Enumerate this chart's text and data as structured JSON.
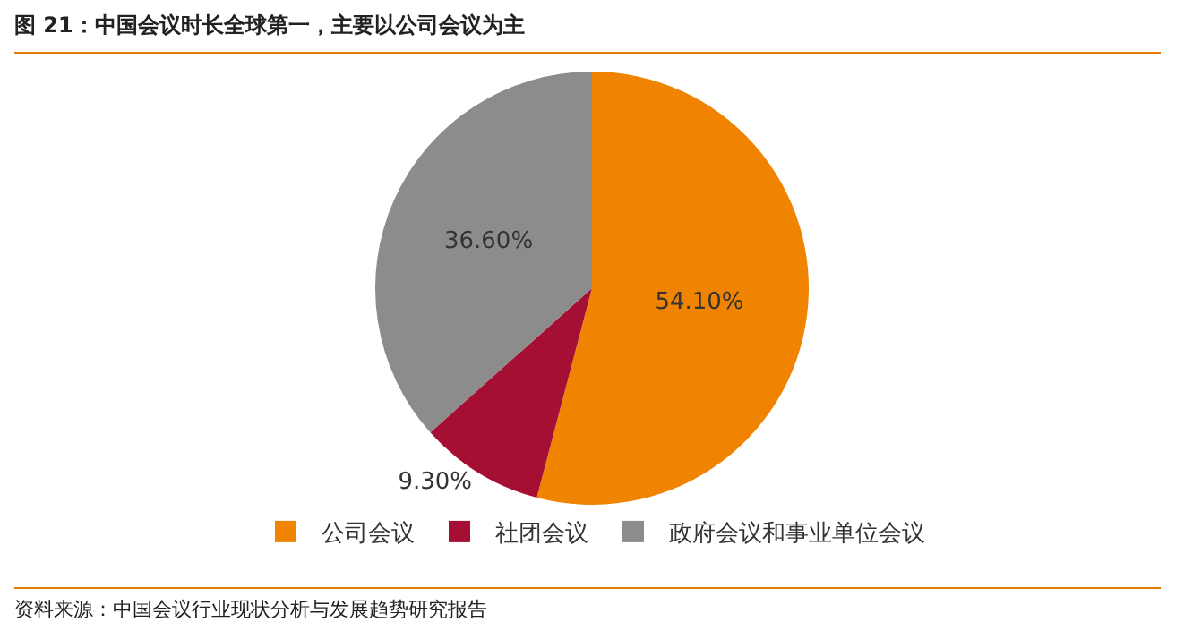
{
  "chart_data": {
    "type": "pie",
    "title": "图 21：中国会议时长全球第一，主要以公司会议为主",
    "categories": [
      "公司会议",
      "社团会议",
      "政府会议和事业单位会议"
    ],
    "values": [
      54.1,
      9.3,
      36.6
    ],
    "colors": [
      "#f08400",
      "#a50f34",
      "#8c8c8c"
    ],
    "value_labels": [
      "54.10%",
      "9.30%",
      "36.60%"
    ],
    "legend": "bottom",
    "annotations": [
      "资料来源：中国会议行业现状分析与发展趋势研究报告"
    ]
  }
}
